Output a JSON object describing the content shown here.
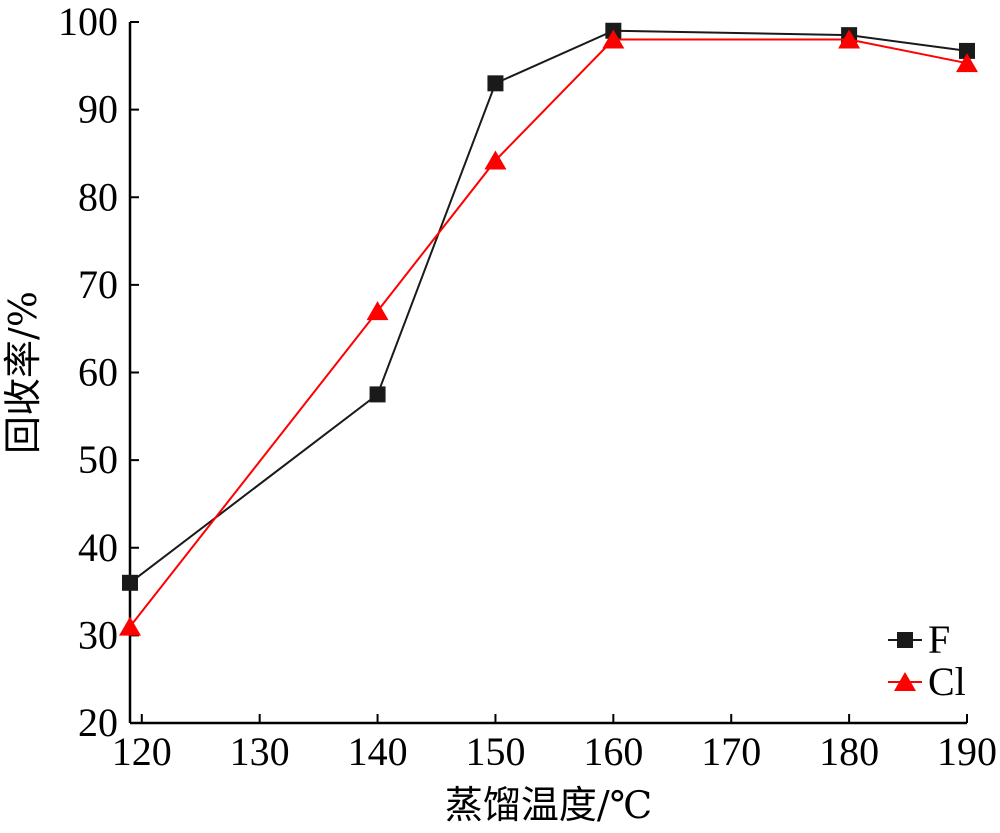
{
  "chart_data": {
    "type": "line",
    "title": "",
    "xlabel": "蒸馏温度/℃",
    "ylabel": "回收率/%",
    "x": [
      119,
      140,
      150,
      160,
      180,
      190
    ],
    "xticks": [
      120,
      130,
      140,
      150,
      160,
      170,
      180,
      190
    ],
    "yticks": [
      20,
      30,
      40,
      50,
      60,
      70,
      80,
      90,
      100
    ],
    "xlim": [
      119,
      190
    ],
    "ylim": [
      20,
      100
    ],
    "grid": false,
    "legend_position": "bottom-right",
    "series": [
      {
        "name": "F",
        "marker": "square",
        "color": "#1a1a1a",
        "values": [
          36,
          57.5,
          93,
          99,
          98.5,
          96.7
        ]
      },
      {
        "name": "Cl",
        "marker": "triangle",
        "color": "#ff0000",
        "values": [
          31,
          67,
          84.2,
          98,
          98,
          95.3
        ]
      }
    ]
  }
}
